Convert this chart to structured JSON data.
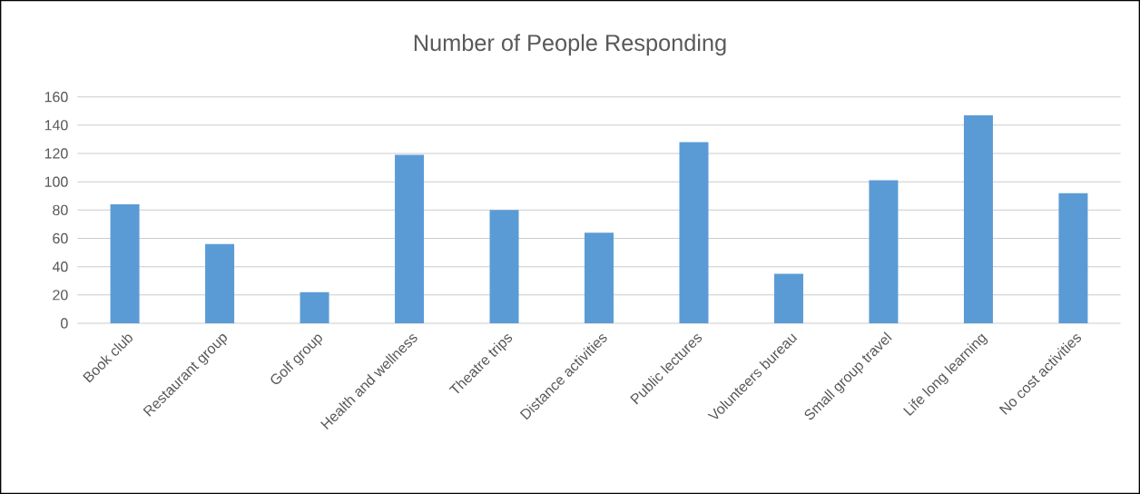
{
  "chart_data": {
    "type": "bar",
    "title": "Number of People Responding",
    "categories": [
      "Book club",
      "Restaurant group",
      "Golf group",
      "Health and wellness",
      "Theatre trips",
      "Distance activities",
      "Public lectures",
      "Volunteers bureau",
      "Small group travel",
      "Life long learning",
      "No cost activities"
    ],
    "values": [
      84,
      56,
      22,
      119,
      80,
      64,
      128,
      35,
      101,
      147,
      92
    ],
    "color": "#5b9bd5",
    "ylim": [
      0,
      160
    ],
    "yticks": [
      0,
      20,
      40,
      60,
      80,
      100,
      120,
      140,
      160
    ],
    "grid": "y"
  }
}
